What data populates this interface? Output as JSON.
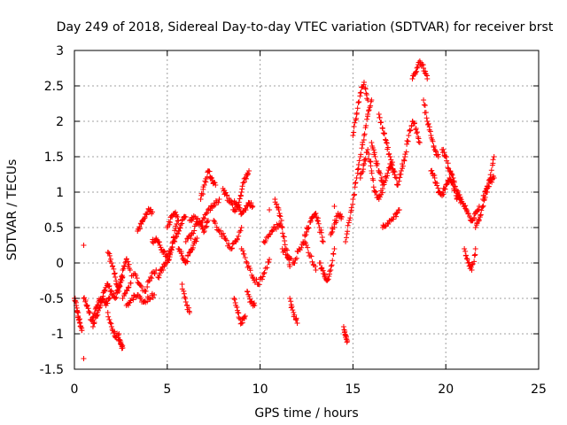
{
  "chart_data": {
    "type": "scatter",
    "title": "Day 249 of 2018, Sidereal Day-to-day VTEC variation (SDTVAR) for receiver brst",
    "xlabel": "GPS time / hours",
    "ylabel": "SDTVAR / TECUs",
    "xlim": [
      0,
      25
    ],
    "ylim": [
      -1.5,
      3
    ],
    "xticks": [
      0,
      5,
      10,
      15,
      20,
      25
    ],
    "xtick_labels": [
      "0",
      "5",
      "10",
      "15",
      "20",
      "25"
    ],
    "yticks": [
      -1.5,
      -1,
      -0.5,
      0,
      0.5,
      1,
      1.5,
      2,
      2.5,
      3
    ],
    "ytick_labels": [
      "-1.5",
      "-1",
      "-0.5",
      "0",
      "0.5",
      "1",
      "1.5",
      "2",
      "2.5",
      "3"
    ],
    "grid": true,
    "marker": "plus",
    "color": "#ff0000",
    "tracks": [
      {
        "x": [
          0.0,
          0.1,
          0.2,
          0.3,
          0.4
        ],
        "y": [
          -0.5,
          -0.6,
          -0.75,
          -0.85,
          -0.95
        ]
      },
      {
        "x": [
          0.5,
          0.7,
          0.9,
          1.1,
          1.3,
          1.5,
          1.7,
          1.9
        ],
        "y": [
          -0.5,
          -0.6,
          -0.8,
          -0.7,
          -0.55,
          -0.5,
          -0.6,
          -0.5
        ]
      },
      {
        "x": [
          1.0,
          1.2,
          1.4,
          1.6,
          1.8,
          2.0,
          2.2,
          2.4,
          2.6
        ],
        "y": [
          -0.9,
          -0.75,
          -0.6,
          -0.4,
          -0.3,
          -0.4,
          -0.5,
          -0.35,
          -0.2
        ]
      },
      {
        "x": [
          1.8,
          2.0,
          2.2,
          2.4
        ],
        "y": [
          -0.7,
          -0.9,
          -1.05,
          -1.0
        ]
      },
      {
        "x": [
          2.4,
          2.5,
          2.6
        ],
        "y": [
          -1.1,
          -1.15,
          -1.2
        ]
      },
      {
        "x": [
          1.8,
          2.0,
          2.2,
          2.4,
          2.6,
          2.8,
          3.0
        ],
        "y": [
          0.15,
          0.0,
          -0.2,
          -0.4,
          -0.1,
          0.05,
          -0.1
        ]
      },
      {
        "x": [
          2.6,
          2.9,
          3.2,
          3.5,
          3.8,
          4.1,
          4.4
        ],
        "y": [
          -0.5,
          -0.35,
          -0.15,
          -0.3,
          -0.4,
          -0.2,
          -0.1
        ]
      },
      {
        "x": [
          2.8,
          3.1,
          3.4,
          3.7,
          4.0,
          4.3
        ],
        "y": [
          -0.6,
          -0.5,
          -0.45,
          -0.55,
          -0.5,
          -0.45
        ]
      },
      {
        "x": [
          3.4,
          3.6,
          3.8,
          4.0,
          4.2
        ],
        "y": [
          0.45,
          0.55,
          0.65,
          0.75,
          0.72
        ]
      },
      {
        "x": [
          4.2,
          4.4,
          4.6,
          4.8,
          5.0,
          5.2,
          5.4,
          5.6,
          5.8,
          6.0
        ],
        "y": [
          0.3,
          0.35,
          0.25,
          0.15,
          0.1,
          0.2,
          0.3,
          0.45,
          0.6,
          0.65
        ]
      },
      {
        "x": [
          4.5,
          4.7,
          4.9,
          5.1,
          5.3,
          5.5
        ],
        "y": [
          -0.2,
          -0.1,
          0.0,
          0.05,
          0.3,
          0.55
        ]
      },
      {
        "x": [
          5.0,
          5.2,
          5.4,
          5.6
        ],
        "y": [
          0.5,
          0.65,
          0.7,
          0.6
        ]
      },
      {
        "x": [
          5.6,
          5.8,
          6.0,
          6.2,
          6.4,
          6.6
        ],
        "y": [
          0.2,
          0.1,
          0.0,
          0.15,
          0.25,
          0.35
        ]
      },
      {
        "x": [
          5.8,
          6.0,
          6.2
        ],
        "y": [
          -0.3,
          -0.55,
          -0.7
        ]
      },
      {
        "x": [
          6.0,
          6.3,
          6.6,
          6.9,
          7.2,
          7.5,
          7.8
        ],
        "y": [
          0.3,
          0.4,
          0.55,
          0.6,
          0.75,
          0.8,
          0.9
        ]
      },
      {
        "x": [
          6.8,
          7.0,
          7.2,
          7.4,
          7.6
        ],
        "y": [
          0.9,
          1.1,
          1.3,
          1.2,
          1.1
        ]
      },
      {
        "x": [
          6.2,
          6.5,
          6.8,
          7.0,
          7.2
        ],
        "y": [
          0.6,
          0.65,
          0.55,
          0.45,
          0.6
        ]
      },
      {
        "x": [
          7.5,
          7.8,
          8.1,
          8.4,
          8.7,
          9.0
        ],
        "y": [
          0.6,
          0.45,
          0.35,
          0.2,
          0.3,
          0.5
        ]
      },
      {
        "x": [
          8.0,
          8.2,
          8.4,
          8.6,
          8.8,
          9.0,
          9.2,
          9.4
        ],
        "y": [
          1.05,
          0.95,
          0.85,
          0.75,
          0.8,
          1.0,
          1.2,
          1.3
        ]
      },
      {
        "x": [
          8.6,
          8.8,
          9.0,
          9.2,
          9.4,
          9.6
        ],
        "y": [
          0.85,
          0.8,
          0.7,
          0.75,
          0.85,
          0.8
        ]
      },
      {
        "x": [
          8.6,
          8.8,
          9.0,
          9.2
        ],
        "y": [
          -0.5,
          -0.7,
          -0.85,
          -0.75
        ]
      },
      {
        "x": [
          9.0,
          9.3,
          9.6,
          9.9,
          10.2,
          10.5
        ],
        "y": [
          0.2,
          0.0,
          -0.2,
          -0.3,
          -0.15,
          0.05
        ]
      },
      {
        "x": [
          9.3,
          9.5,
          9.7
        ],
        "y": [
          -0.4,
          -0.55,
          -0.6
        ]
      },
      {
        "x": [
          10.2,
          10.5,
          10.8,
          11.1
        ],
        "y": [
          0.3,
          0.4,
          0.5,
          0.55
        ]
      },
      {
        "x": [
          10.8,
          11.0,
          11.2,
          11.4,
          11.6
        ],
        "y": [
          0.9,
          0.75,
          0.5,
          0.2,
          -0.05
        ]
      },
      {
        "x": [
          11.2,
          11.5,
          11.8,
          12.1,
          12.4,
          12.7,
          13.0
        ],
        "y": [
          0.2,
          0.1,
          0.0,
          0.2,
          0.3,
          0.1,
          -0.1
        ]
      },
      {
        "x": [
          11.6,
          11.8,
          12.0
        ],
        "y": [
          -0.5,
          -0.7,
          -0.85
        ]
      },
      {
        "x": [
          12.4,
          12.6,
          12.8,
          13.0,
          13.2,
          13.4
        ],
        "y": [
          0.4,
          0.5,
          0.65,
          0.7,
          0.5,
          0.3
        ]
      },
      {
        "x": [
          13.2,
          13.4,
          13.6,
          13.8,
          14.0
        ],
        "y": [
          0.0,
          -0.15,
          -0.25,
          -0.1,
          0.2
        ]
      },
      {
        "x": [
          13.8,
          14.0,
          14.2,
          14.4
        ],
        "y": [
          0.4,
          0.55,
          0.7,
          0.65
        ]
      },
      {
        "x": [
          14.5,
          14.6,
          14.7
        ],
        "y": [
          -0.9,
          -1.05,
          -1.1
        ]
      },
      {
        "x": [
          14.6,
          14.8,
          15.0,
          15.2,
          15.4,
          15.6,
          15.8,
          16.0
        ],
        "y": [
          0.3,
          0.6,
          0.9,
          1.2,
          1.5,
          1.8,
          2.1,
          2.3
        ]
      },
      {
        "x": [
          15.0,
          15.2,
          15.4,
          15.6,
          15.8
        ],
        "y": [
          1.8,
          2.1,
          2.4,
          2.55,
          2.3
        ]
      },
      {
        "x": [
          15.4,
          15.6,
          15.8,
          16.0,
          16.2,
          16.4,
          16.6
        ],
        "y": [
          1.2,
          1.4,
          1.6,
          1.3,
          1.0,
          0.9,
          1.05
        ]
      },
      {
        "x": [
          16.0,
          16.2,
          16.4,
          16.6,
          16.8,
          17.0,
          17.2,
          17.4
        ],
        "y": [
          1.7,
          1.5,
          1.3,
          1.1,
          1.2,
          1.4,
          1.3,
          1.1
        ]
      },
      {
        "x": [
          16.4,
          16.6,
          16.8,
          17.0,
          17.2
        ],
        "y": [
          2.1,
          1.9,
          1.7,
          1.5,
          1.3
        ]
      },
      {
        "x": [
          16.6,
          16.9,
          17.2,
          17.5
        ],
        "y": [
          0.5,
          0.55,
          0.65,
          0.75
        ]
      },
      {
        "x": [
          17.4,
          17.6,
          17.8,
          18.0,
          18.2,
          18.4,
          18.6
        ],
        "y": [
          1.1,
          1.3,
          1.5,
          1.8,
          2.0,
          1.9,
          1.7
        ]
      },
      {
        "x": [
          18.2,
          18.4,
          18.6,
          18.8,
          19.0
        ],
        "y": [
          2.6,
          2.7,
          2.85,
          2.75,
          2.6
        ]
      },
      {
        "x": [
          18.8,
          19.0,
          19.2,
          19.4,
          19.6
        ],
        "y": [
          2.3,
          2.0,
          1.8,
          1.6,
          1.5
        ]
      },
      {
        "x": [
          19.2,
          19.4,
          19.6,
          19.8,
          20.0,
          20.2,
          20.4,
          20.6
        ],
        "y": [
          1.3,
          1.2,
          1.0,
          0.95,
          1.1,
          1.2,
          1.1,
          0.9
        ]
      },
      {
        "x": [
          19.8,
          20.0,
          20.2,
          20.4,
          20.6,
          20.8
        ],
        "y": [
          1.6,
          1.5,
          1.3,
          1.2,
          1.0,
          0.85
        ]
      },
      {
        "x": [
          20.6,
          20.8,
          21.0,
          21.2,
          21.4,
          21.6,
          21.8
        ],
        "y": [
          1.0,
          0.9,
          0.8,
          0.7,
          0.6,
          0.7,
          0.8
        ]
      },
      {
        "x": [
          21.0,
          21.2,
          21.4,
          21.6
        ],
        "y": [
          0.2,
          0.0,
          -0.1,
          0.2
        ]
      },
      {
        "x": [
          21.6,
          21.8,
          22.0,
          22.2,
          22.4,
          22.6
        ],
        "y": [
          0.5,
          0.6,
          0.8,
          1.0,
          1.2,
          1.5
        ]
      },
      {
        "x": [
          22.0,
          22.2,
          22.4,
          22.6
        ],
        "y": [
          0.9,
          1.05,
          1.15,
          1.2
        ]
      }
    ],
    "isolated_points": {
      "x": [
        0.5,
        0.5,
        10.5,
        14.0
      ],
      "y": [
        0.25,
        -1.35,
        0.75,
        0.8
      ]
    }
  }
}
